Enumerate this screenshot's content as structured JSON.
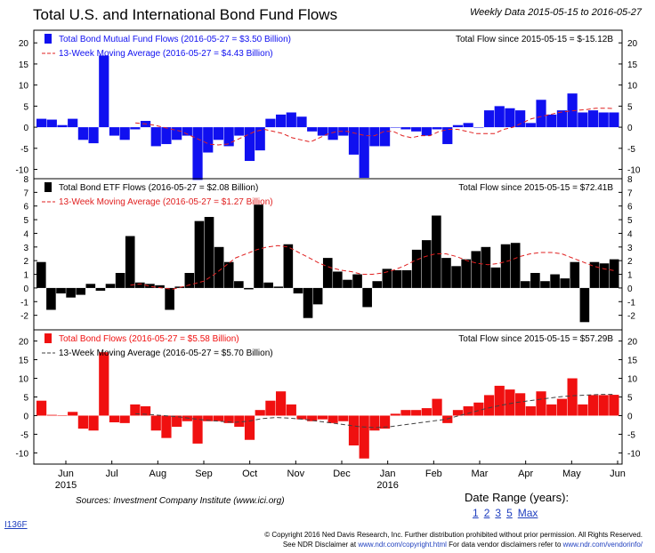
{
  "header": {
    "title": "Total U.S. and International Bond Fund Flows",
    "weekly": "Weekly Data 2015-05-15 to 2016-05-27"
  },
  "chart_data": [
    {
      "type": "bar",
      "panel": "mutual",
      "bar_color": "#1010f0",
      "ma_color": "#e02020",
      "ylim": [
        -12,
        23
      ],
      "yticks": [
        -10,
        -5,
        0,
        5,
        10,
        15,
        20
      ],
      "legend": [
        {
          "label": "Total Bond Mutual Fund Flows (2016-05-27 = $3.50 Billion)",
          "swatch": "box",
          "color": "#1010f0",
          "text_color": "#1010f0"
        },
        {
          "label": "13-Week Moving Average (2016-05-27 = $4.43 Billion)",
          "swatch": "dash",
          "color": "#e02020",
          "text_color": "#1010f0"
        }
      ],
      "total_flow": "Total Flow since 2015-05-15 = $-15.12B",
      "values": [
        2.0,
        1.8,
        0.5,
        2.0,
        -3.0,
        -3.8,
        17.0,
        -2.0,
        -3.0,
        -0.5,
        1.5,
        -4.5,
        -4.0,
        -3.0,
        -2.0,
        -12.5,
        -6.0,
        -3.0,
        -4.5,
        -2.0,
        -8.0,
        -5.5,
        2.0,
        3.0,
        3.5,
        2.5,
        -1.0,
        -2.0,
        -3.0,
        -2.0,
        -6.5,
        -12.0,
        -4.5,
        -4.5,
        0.0,
        -0.5,
        -1.0,
        -2.0,
        -0.5,
        -4.0,
        0.5,
        1.0,
        0.0,
        4.0,
        5.0,
        4.5,
        4.0,
        1.0,
        6.5,
        3.0,
        4.0,
        8.0,
        3.5,
        4.0,
        3.5,
        3.5
      ],
      "ma": [
        1.0,
        0.8,
        0.5,
        0.0,
        -0.5,
        -1.0,
        -2.0,
        -3.0,
        -4.0,
        -4.2,
        -4.0,
        -3.0,
        -2.0,
        -1.0,
        -0.5,
        -1.0,
        -1.5,
        -2.5,
        -3.0,
        -3.5,
        -2.5,
        -1.5,
        -1.0,
        -1.0,
        -1.5,
        -2.0,
        -2.0,
        -1.0,
        -1.0,
        -2.0,
        -2.5,
        -2.0,
        -2.0,
        -1.0,
        -0.5,
        -0.5,
        -1.0,
        -1.5,
        -1.5,
        -1.5,
        -0.5,
        0.0,
        1.0,
        2.0,
        2.5,
        3.0,
        3.5,
        3.8,
        4.0,
        4.2,
        4.5,
        4.5,
        4.43
      ]
    },
    {
      "type": "bar",
      "panel": "etf",
      "bar_color": "#000000",
      "ma_color": "#e02020",
      "ylim": [
        -3,
        8
      ],
      "yticks": [
        -2,
        -1,
        0,
        1,
        2,
        3,
        4,
        5,
        6,
        7,
        8
      ],
      "legend": [
        {
          "label": "Total Bond ETF Flows (2016-05-27 = $2.08 Billion)",
          "swatch": "box",
          "color": "#000000",
          "text_color": "#000000"
        },
        {
          "label": "13-Week Moving Average (2016-05-27 = $1.27 Billion)",
          "swatch": "dash",
          "color": "#e02020",
          "text_color": "#e02020"
        }
      ],
      "total_flow": "Total Flow since 2015-05-15 = $72.41B",
      "values": [
        1.9,
        -1.6,
        -0.4,
        -0.7,
        -0.5,
        0.3,
        -0.2,
        0.3,
        1.1,
        3.8,
        0.4,
        0.3,
        0.2,
        -1.6,
        0.1,
        1.1,
        4.9,
        5.2,
        3.0,
        1.9,
        0.5,
        -0.1,
        6.1,
        0.4,
        0.1,
        3.2,
        -0.4,
        -2.2,
        -1.2,
        2.2,
        1.2,
        0.6,
        1.0,
        -1.4,
        0.5,
        1.4,
        1.3,
        1.3,
        2.8,
        3.5,
        5.3,
        2.2,
        1.6,
        2.1,
        2.7,
        3.0,
        1.5,
        3.2,
        3.3,
        0.5,
        1.1,
        0.5,
        1.0,
        0.7,
        1.9,
        -2.5,
        1.9,
        1.8,
        2.1
      ],
      "ma": [
        0.2,
        0.3,
        0.1,
        0.0,
        -0.1,
        0.1,
        0.3,
        0.5,
        1.0,
        1.6,
        2.2,
        2.5,
        2.8,
        3.0,
        3.1,
        3.0,
        2.6,
        2.2,
        1.8,
        1.5,
        1.3,
        1.2,
        1.0,
        1.0,
        1.1,
        1.3,
        1.6,
        2.0,
        2.3,
        2.5,
        2.5,
        2.3,
        2.0,
        1.8,
        1.7,
        1.8,
        2.0,
        2.3,
        2.5,
        2.6,
        2.6,
        2.5,
        2.2,
        1.9,
        1.6,
        1.4,
        1.27
      ]
    },
    {
      "type": "bar",
      "panel": "total",
      "bar_color": "#f01010",
      "ma_color": "#404040",
      "ylim": [
        -13,
        23
      ],
      "yticks": [
        -10,
        -5,
        0,
        5,
        10,
        15,
        20
      ],
      "legend": [
        {
          "label": "Total Bond Flows (2016-05-27 = $5.58 Billion)",
          "swatch": "box",
          "color": "#f01010",
          "text_color": "#f01010"
        },
        {
          "label": "13-Week Moving Average (2016-05-27 = $5.70 Billion)",
          "swatch": "dash",
          "color": "#404040",
          "text_color": "#000000"
        }
      ],
      "total_flow": "Total Flow since 2015-05-15 = $57.29B",
      "values": [
        4.0,
        0.2,
        0.0,
        1.0,
        -3.5,
        -4.0,
        17.0,
        -1.8,
        -2.0,
        3.0,
        2.5,
        -4.0,
        -6.0,
        -3.0,
        -1.5,
        -7.5,
        -1.5,
        -1.5,
        -2.0,
        -3.0,
        -6.5,
        1.5,
        4.0,
        6.5,
        3.0,
        -1.0,
        -1.5,
        -1.0,
        -2.0,
        -1.5,
        -8.0,
        -11.5,
        -4.0,
        -3.5,
        0.5,
        1.5,
        1.5,
        2.0,
        4.5,
        -2.0,
        1.5,
        2.5,
        3.5,
        5.5,
        8.0,
        7.0,
        6.0,
        2.5,
        6.5,
        3.0,
        4.5,
        10.0,
        3.0,
        5.5,
        5.5,
        5.58
      ],
      "ma": [
        0.5,
        0.3,
        0.0,
        -0.3,
        -0.8,
        -1.2,
        -1.5,
        -1.8,
        -1.5,
        -0.8,
        -0.5,
        -0.7,
        -1.0,
        -1.5,
        -2.0,
        -2.5,
        -3.0,
        -3.2,
        -3.0,
        -2.5,
        -2.0,
        -1.5,
        -1.0,
        0.0,
        1.0,
        2.0,
        2.8,
        3.5,
        4.0,
        4.5,
        5.0,
        5.3,
        5.5,
        5.7,
        5.7
      ]
    }
  ],
  "x_axis": {
    "months": [
      "Jun",
      "Jul",
      "Aug",
      "Sep",
      "Oct",
      "Nov",
      "Dec",
      "Jan",
      "Feb",
      "Mar",
      "Apr",
      "May",
      "Jun"
    ],
    "years": [
      "2015",
      "2016"
    ]
  },
  "sources": "Sources: Investment Company Institute (www.ici.org)",
  "date_range": {
    "label": "Date Range (years):",
    "options": [
      "1",
      "2",
      "3",
      "5",
      "Max"
    ]
  },
  "code": "I136F",
  "copyright": {
    "line1": "© Copyright 2016 Ned Davis Research, Inc. Further distribution prohibited without prior permission. All Rights Reserved.",
    "line2a": "See NDR Disclaimer at ",
    "link1": "www.ndr.com/copyright.html",
    "line2b": "  For data vendor disclaimers refer to ",
    "link2": "www.ndr.com/vendorinfo/"
  }
}
